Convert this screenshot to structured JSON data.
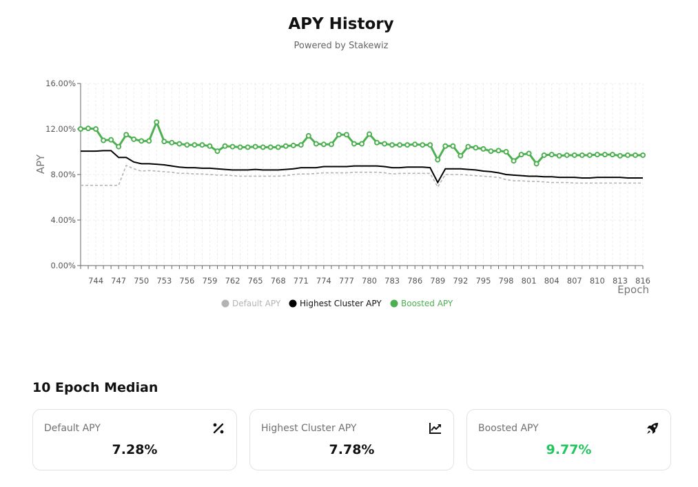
{
  "header": {
    "title": "APY History",
    "subtitle": "Powered by Stakewiz"
  },
  "chart_data": {
    "type": "line",
    "title": "APY History",
    "subtitle": "Powered by Stakewiz",
    "xlabel": "Epoch",
    "ylabel": "APY",
    "xlim": [
      742,
      816
    ],
    "ylim": [
      0,
      16
    ],
    "y_ticks": [
      "0.00%",
      "4.00%",
      "8.00%",
      "12.00%",
      "16.00%"
    ],
    "x_ticks": [
      "744",
      "747",
      "750",
      "753",
      "756",
      "759",
      "762",
      "765",
      "768",
      "771",
      "774",
      "777",
      "780",
      "783",
      "786",
      "789",
      "792",
      "795",
      "798",
      "801",
      "804",
      "807",
      "810",
      "813",
      "816"
    ],
    "grid": true,
    "legend_position": "bottom",
    "x": [
      742,
      743,
      744,
      745,
      746,
      747,
      748,
      749,
      750,
      751,
      752,
      753,
      754,
      755,
      756,
      757,
      758,
      759,
      760,
      761,
      762,
      763,
      764,
      765,
      766,
      767,
      768,
      769,
      770,
      771,
      772,
      773,
      774,
      775,
      776,
      777,
      778,
      779,
      780,
      781,
      782,
      783,
      784,
      785,
      786,
      787,
      788,
      789,
      790,
      791,
      792,
      793,
      794,
      795,
      796,
      797,
      798,
      799,
      800,
      801,
      802,
      803,
      804,
      805,
      806,
      807,
      808,
      809,
      810,
      811,
      812,
      813,
      814,
      815,
      816
    ],
    "series": [
      {
        "name": "Default APY",
        "color": "#b3b3b3",
        "style": "dashed",
        "values": [
          7.05,
          7.05,
          7.05,
          7.05,
          7.05,
          7.05,
          8.8,
          8.5,
          8.3,
          8.35,
          8.3,
          8.25,
          8.2,
          8.1,
          8.1,
          8.05,
          8.05,
          8.0,
          7.95,
          7.95,
          7.9,
          7.85,
          7.85,
          7.85,
          7.85,
          7.85,
          7.85,
          7.9,
          8.0,
          8.05,
          8.05,
          8.1,
          8.15,
          8.15,
          8.15,
          8.15,
          8.2,
          8.2,
          8.2,
          8.2,
          8.15,
          8.05,
          8.1,
          8.1,
          8.1,
          8.1,
          8.1,
          6.9,
          8.0,
          8.0,
          8.0,
          7.95,
          7.9,
          7.85,
          7.8,
          7.75,
          7.55,
          7.45,
          7.45,
          7.4,
          7.4,
          7.35,
          7.3,
          7.3,
          7.3,
          7.25,
          7.25,
          7.25,
          7.25,
          7.25,
          7.25,
          7.25,
          7.25,
          7.25,
          7.25
        ]
      },
      {
        "name": "Highest Cluster APY",
        "color": "#000000",
        "style": "solid",
        "values": [
          10.05,
          10.05,
          10.05,
          10.1,
          10.1,
          9.5,
          9.5,
          9.1,
          8.95,
          8.95,
          8.9,
          8.85,
          8.75,
          8.65,
          8.6,
          8.6,
          8.55,
          8.55,
          8.5,
          8.45,
          8.4,
          8.4,
          8.4,
          8.45,
          8.4,
          8.4,
          8.4,
          8.45,
          8.5,
          8.6,
          8.6,
          8.6,
          8.7,
          8.7,
          8.7,
          8.7,
          8.75,
          8.75,
          8.75,
          8.75,
          8.7,
          8.6,
          8.6,
          8.65,
          8.65,
          8.65,
          8.6,
          7.3,
          8.5,
          8.5,
          8.5,
          8.45,
          8.4,
          8.3,
          8.25,
          8.15,
          8.0,
          7.95,
          7.9,
          7.85,
          7.85,
          7.8,
          7.8,
          7.75,
          7.75,
          7.75,
          7.7,
          7.7,
          7.75,
          7.75,
          7.75,
          7.75,
          7.7,
          7.7,
          7.7
        ]
      },
      {
        "name": "Boosted APY",
        "color": "#4caf50",
        "style": "solid-with-markers",
        "values": [
          12.0,
          12.05,
          12.0,
          11.0,
          11.05,
          10.45,
          11.5,
          11.1,
          10.95,
          10.95,
          12.6,
          10.9,
          10.8,
          10.7,
          10.6,
          10.6,
          10.6,
          10.5,
          10.05,
          10.5,
          10.45,
          10.4,
          10.4,
          10.45,
          10.4,
          10.4,
          10.4,
          10.5,
          10.55,
          10.6,
          11.4,
          10.7,
          10.65,
          10.65,
          11.5,
          11.5,
          10.7,
          10.7,
          11.55,
          10.8,
          10.7,
          10.6,
          10.6,
          10.6,
          10.65,
          10.6,
          10.6,
          9.3,
          10.5,
          10.5,
          9.65,
          10.45,
          10.35,
          10.25,
          10.05,
          10.1,
          10.0,
          9.2,
          9.75,
          9.85,
          8.95,
          9.7,
          9.75,
          9.65,
          9.7,
          9.7,
          9.7,
          9.7,
          9.75,
          9.75,
          9.75,
          9.65,
          9.7,
          9.7,
          9.7
        ]
      }
    ]
  },
  "median": {
    "title": "10 Epoch Median",
    "cards": [
      {
        "label": "Default APY",
        "value": "7.28%",
        "icon": "percent-icon",
        "value_color": "#111111"
      },
      {
        "label": "Highest Cluster APY",
        "value": "7.78%",
        "icon": "trending-chart-icon",
        "value_color": "#111111"
      },
      {
        "label": "Boosted APY",
        "value": "9.77%",
        "icon": "rocket-icon",
        "value_color": "#22c55e"
      }
    ]
  }
}
